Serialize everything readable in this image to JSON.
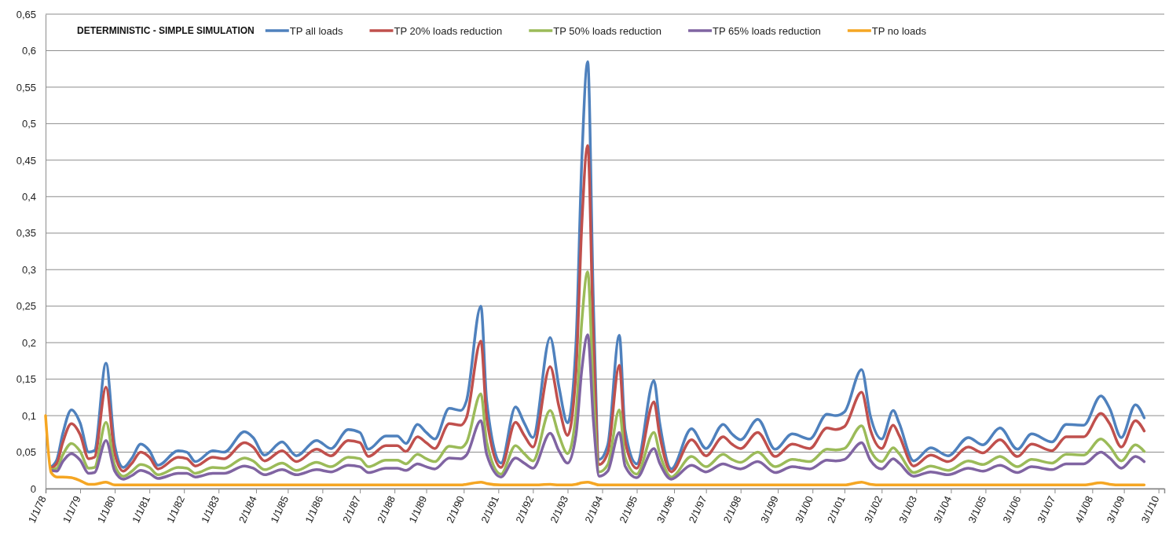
{
  "chart_data": {
    "type": "line",
    "legend_title": "DETERMINISTIC - SIMPLE SIMULATION",
    "legend": "top",
    "grid": "y",
    "x": [
      "1978-01",
      "1978-03",
      "1978-05",
      "1978-07",
      "1978-10",
      "1979-01",
      "1979-04",
      "1979-06",
      "1979-10",
      "1980-01",
      "1980-04",
      "1980-07",
      "1980-10",
      "1981-01",
      "1981-04",
      "1981-11",
      "1982-02",
      "1982-05",
      "1982-11",
      "1983-03",
      "1983-10",
      "1984-01",
      "1984-05",
      "1984-11",
      "1985-04",
      "1985-11",
      "1986-04",
      "1986-10",
      "1987-02",
      "1987-05",
      "1987-11",
      "1988-03",
      "1988-06",
      "1988-10",
      "1989-01",
      "1989-04",
      "1989-09",
      "1990-01",
      "1990-03",
      "1990-08",
      "1990-10",
      "1991-03",
      "1991-08",
      "1991-11",
      "1992-02",
      "1992-08",
      "1992-11",
      "1993-02",
      "1993-05",
      "1993-07",
      "1993-09",
      "1993-11",
      "1994-01",
      "1994-04",
      "1994-08",
      "1994-10",
      "1995-02",
      "1995-08",
      "1995-10",
      "1996-02",
      "1996-09",
      "1997-02",
      "1997-08",
      "1997-11",
      "1998-02",
      "1998-08",
      "1999-02",
      "1999-08",
      "2000-02",
      "2000-08",
      "2000-11",
      "2001-02",
      "2001-08",
      "2001-11",
      "2002-03",
      "2002-07",
      "2002-09",
      "2003-02",
      "2003-08",
      "2004-02",
      "2004-09",
      "2005-02",
      "2005-08",
      "2006-02",
      "2006-07",
      "2007-02",
      "2007-07",
      "2008-01",
      "2008-07",
      "2008-10",
      "2009-02",
      "2009-07",
      "2009-10"
    ],
    "xlim": [
      "1978-01-01",
      "2010-05-01"
    ],
    "xticks": [
      {
        "value": "1978-01-01",
        "label": "1/1/78"
      },
      {
        "value": "1979-01-01",
        "label": "1/1/79"
      },
      {
        "value": "1980-01-01",
        "label": "1/1/80"
      },
      {
        "value": "1981-01-01",
        "label": "1/1/81"
      },
      {
        "value": "1982-01-01",
        "label": "1/1/82"
      },
      {
        "value": "1983-01-01",
        "label": "1/1/83"
      },
      {
        "value": "1984-02-01",
        "label": "2/1/84"
      },
      {
        "value": "1985-01-01",
        "label": "1/1/85"
      },
      {
        "value": "1986-01-01",
        "label": "1/1/86"
      },
      {
        "value": "1987-02-01",
        "label": "2/1/87"
      },
      {
        "value": "1988-02-01",
        "label": "2/1/88"
      },
      {
        "value": "1989-01-01",
        "label": "1/1/89"
      },
      {
        "value": "1990-02-01",
        "label": "2/1/90"
      },
      {
        "value": "1991-02-01",
        "label": "2/1/91"
      },
      {
        "value": "1992-02-01",
        "label": "2/1/92"
      },
      {
        "value": "1993-02-01",
        "label": "2/1/93"
      },
      {
        "value": "1994-02-01",
        "label": "2/1/94"
      },
      {
        "value": "1995-02-01",
        "label": "2/1/95"
      },
      {
        "value": "1996-03-01",
        "label": "3/1/96"
      },
      {
        "value": "1997-02-01",
        "label": "2/1/97"
      },
      {
        "value": "1998-02-01",
        "label": "2/1/98"
      },
      {
        "value": "1999-03-01",
        "label": "3/1/99"
      },
      {
        "value": "2000-03-01",
        "label": "3/1/00"
      },
      {
        "value": "2001-02-01",
        "label": "2/1/01"
      },
      {
        "value": "2002-03-01",
        "label": "3/1/02"
      },
      {
        "value": "2003-03-01",
        "label": "3/1/03"
      },
      {
        "value": "2004-03-01",
        "label": "3/1/04"
      },
      {
        "value": "2005-03-01",
        "label": "3/1/05"
      },
      {
        "value": "2006-03-01",
        "label": "3/1/06"
      },
      {
        "value": "2007-03-01",
        "label": "3/1/07"
      },
      {
        "value": "2008-04-01",
        "label": "4/1/08"
      },
      {
        "value": "2009-03-01",
        "label": "3/1/09"
      },
      {
        "value": "2010-03-01",
        "label": "3/1/10"
      }
    ],
    "ylim": [
      0,
      0.65
    ],
    "yticks": [
      0,
      {
        "value": 0.05,
        "label": "0,05"
      },
      {
        "value": 0.1,
        "label": "0,1"
      },
      {
        "value": 0.15,
        "label": "0,15"
      },
      {
        "value": 0.2,
        "label": "0,2"
      },
      {
        "value": 0.25,
        "label": "0,25"
      },
      {
        "value": 0.3,
        "label": "0,3"
      },
      {
        "value": 0.35,
        "label": "0,35"
      },
      {
        "value": 0.4,
        "label": "0,4"
      },
      {
        "value": 0.45,
        "label": "0,45"
      },
      {
        "value": 0.5,
        "label": "0,5"
      },
      {
        "value": 0.55,
        "label": "0,55"
      },
      {
        "value": 0.6,
        "label": "0,6"
      },
      {
        "value": 0.65,
        "label": "0,65"
      }
    ],
    "series": [
      {
        "name": "TP all loads",
        "color": "#4f81bd",
        "values": [
          null,
          0.03,
          0.04,
          0.075,
          0.108,
          0.09,
          0.05,
          0.052,
          0.172,
          0.059,
          0.029,
          0.042,
          0.061,
          0.052,
          0.032,
          0.052,
          0.05,
          0.037,
          0.052,
          0.05,
          0.078,
          0.07,
          0.046,
          0.064,
          0.045,
          0.066,
          0.055,
          0.081,
          0.077,
          0.054,
          0.072,
          0.072,
          0.062,
          0.088,
          0.077,
          0.068,
          0.11,
          0.107,
          0.12,
          0.25,
          0.12,
          0.035,
          0.112,
          0.09,
          0.07,
          0.207,
          0.14,
          0.09,
          0.2,
          0.45,
          0.585,
          0.25,
          0.04,
          0.06,
          0.21,
          0.08,
          0.034,
          0.148,
          0.09,
          0.027,
          0.082,
          0.055,
          0.088,
          0.075,
          0.067,
          0.095,
          0.054,
          0.075,
          0.068,
          0.102,
          0.1,
          0.105,
          0.163,
          0.1,
          0.068,
          0.107,
          0.09,
          0.038,
          0.056,
          0.045,
          0.07,
          0.06,
          0.083,
          0.054,
          0.075,
          0.064,
          0.088,
          0.087,
          0.127,
          0.11,
          0.07,
          0.115,
          0.097
        ]
      },
      {
        "name": "TP 20% loads reduction",
        "color": "#c0504d",
        "values": [
          null,
          0.028,
          0.035,
          0.063,
          0.089,
          0.074,
          0.041,
          0.043,
          0.139,
          0.048,
          0.024,
          0.035,
          0.05,
          0.043,
          0.027,
          0.043,
          0.041,
          0.031,
          0.043,
          0.041,
          0.063,
          0.057,
          0.038,
          0.052,
          0.037,
          0.054,
          0.045,
          0.066,
          0.063,
          0.044,
          0.059,
          0.059,
          0.051,
          0.071,
          0.063,
          0.055,
          0.089,
          0.087,
          0.097,
          0.202,
          0.097,
          0.029,
          0.091,
          0.073,
          0.057,
          0.167,
          0.113,
          0.073,
          0.161,
          0.362,
          0.47,
          0.201,
          0.033,
          0.049,
          0.169,
          0.065,
          0.028,
          0.119,
          0.073,
          0.023,
          0.067,
          0.045,
          0.071,
          0.061,
          0.055,
          0.077,
          0.044,
          0.061,
          0.055,
          0.083,
          0.081,
          0.085,
          0.132,
          0.081,
          0.055,
          0.087,
          0.073,
          0.031,
          0.046,
          0.037,
          0.057,
          0.049,
          0.067,
          0.044,
          0.061,
          0.052,
          0.071,
          0.071,
          0.103,
          0.089,
          0.057,
          0.093,
          0.079
        ]
      },
      {
        "name": "TP 50% loads reduction",
        "color": "#9bbb59",
        "values": [
          null,
          0.026,
          0.028,
          0.046,
          0.062,
          0.051,
          0.028,
          0.029,
          0.091,
          0.032,
          0.017,
          0.024,
          0.033,
          0.029,
          0.019,
          0.029,
          0.028,
          0.021,
          0.029,
          0.028,
          0.042,
          0.038,
          0.026,
          0.035,
          0.025,
          0.036,
          0.03,
          0.043,
          0.041,
          0.03,
          0.039,
          0.039,
          0.034,
          0.047,
          0.041,
          0.037,
          0.058,
          0.056,
          0.063,
          0.13,
          0.064,
          0.02,
          0.059,
          0.048,
          0.038,
          0.107,
          0.073,
          0.048,
          0.103,
          0.229,
          0.297,
          0.129,
          0.023,
          0.033,
          0.108,
          0.043,
          0.02,
          0.077,
          0.048,
          0.016,
          0.044,
          0.03,
          0.047,
          0.04,
          0.036,
          0.05,
          0.03,
          0.04,
          0.037,
          0.054,
          0.053,
          0.055,
          0.086,
          0.053,
          0.037,
          0.056,
          0.048,
          0.022,
          0.031,
          0.025,
          0.038,
          0.033,
          0.044,
          0.03,
          0.04,
          0.035,
          0.047,
          0.046,
          0.068,
          0.058,
          0.038,
          0.06,
          0.051
        ]
      },
      {
        "name": "TP 65% loads reduction",
        "color": "#8064a2",
        "values": [
          null,
          0.025,
          0.024,
          0.037,
          0.048,
          0.039,
          0.021,
          0.022,
          0.066,
          0.024,
          0.013,
          0.018,
          0.025,
          0.021,
          0.014,
          0.021,
          0.021,
          0.016,
          0.021,
          0.021,
          0.031,
          0.028,
          0.019,
          0.026,
          0.019,
          0.026,
          0.023,
          0.032,
          0.03,
          0.022,
          0.028,
          0.028,
          0.025,
          0.034,
          0.03,
          0.027,
          0.042,
          0.041,
          0.046,
          0.093,
          0.047,
          0.016,
          0.042,
          0.035,
          0.028,
          0.076,
          0.052,
          0.035,
          0.074,
          0.163,
          0.211,
          0.092,
          0.017,
          0.024,
          0.077,
          0.031,
          0.015,
          0.055,
          0.035,
          0.013,
          0.032,
          0.023,
          0.034,
          0.03,
          0.027,
          0.037,
          0.022,
          0.03,
          0.027,
          0.039,
          0.038,
          0.04,
          0.063,
          0.039,
          0.027,
          0.041,
          0.035,
          0.017,
          0.023,
          0.019,
          0.028,
          0.024,
          0.032,
          0.022,
          0.03,
          0.026,
          0.034,
          0.034,
          0.05,
          0.042,
          0.028,
          0.044,
          0.037
        ]
      },
      {
        "name": "TP no loads",
        "color": "#f5a623",
        "values": [
          0.1,
          0.022,
          0.016,
          0.016,
          0.015,
          0.011,
          0.006,
          0.006,
          0.009,
          0.005,
          0.005,
          0.005,
          0.005,
          0.005,
          0.005,
          0.005,
          0.005,
          0.005,
          0.005,
          0.005,
          0.005,
          0.005,
          0.005,
          0.005,
          0.005,
          0.005,
          0.005,
          0.005,
          0.005,
          0.005,
          0.005,
          0.005,
          0.005,
          0.005,
          0.005,
          0.005,
          0.005,
          0.005,
          0.006,
          0.009,
          0.007,
          0.005,
          0.005,
          0.005,
          0.005,
          0.006,
          0.005,
          0.005,
          0.006,
          0.008,
          0.009,
          0.007,
          0.005,
          0.005,
          0.005,
          0.005,
          0.005,
          0.005,
          0.005,
          0.005,
          0.005,
          0.005,
          0.005,
          0.005,
          0.005,
          0.005,
          0.005,
          0.005,
          0.005,
          0.005,
          0.005,
          0.005,
          0.009,
          0.006,
          0.005,
          0.005,
          0.005,
          0.005,
          0.005,
          0.005,
          0.005,
          0.005,
          0.005,
          0.005,
          0.005,
          0.005,
          0.005,
          0.005,
          0.008,
          0.006,
          0.005,
          0.005,
          0.005
        ]
      }
    ]
  }
}
